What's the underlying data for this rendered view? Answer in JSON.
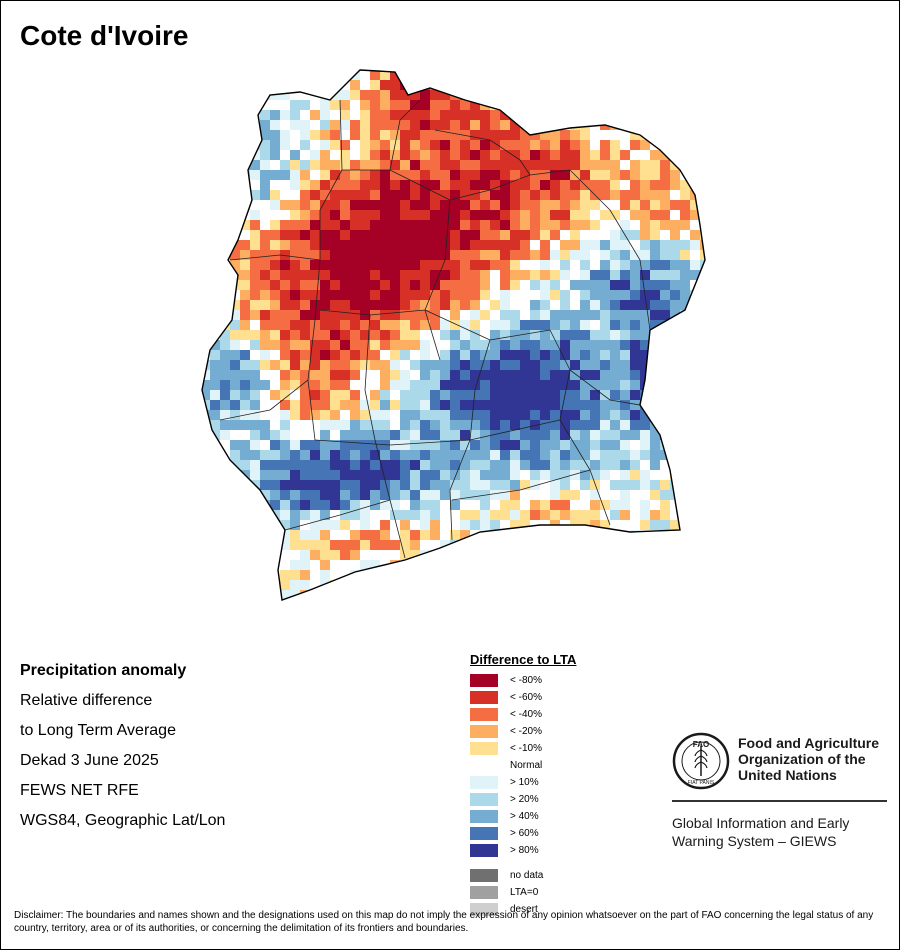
{
  "map_title": "Cote d'Ivoire",
  "info": {
    "heading": "Precipitation anomaly",
    "lines": [
      "Relative difference",
      "to Long Term Average",
      "Dekad 3 June 2025",
      "FEWS NET RFE",
      "WGS84, Geographic Lat/Lon"
    ]
  },
  "legend": {
    "title": "Difference to LTA",
    "items": [
      {
        "label": "< -80%",
        "color": "#a50026"
      },
      {
        "label": "< -60%",
        "color": "#d73027"
      },
      {
        "label": "< -40%",
        "color": "#f46d43"
      },
      {
        "label": "< -20%",
        "color": "#fdae61"
      },
      {
        "label": "< -10%",
        "color": "#fee090"
      },
      {
        "label": "Normal",
        "color": "#ffffff"
      },
      {
        "label": "> 10%",
        "color": "#e0f3f8"
      },
      {
        "label": "> 20%",
        "color": "#abd9e9"
      },
      {
        "label": "> 40%",
        "color": "#74add1"
      },
      {
        "label": "> 60%",
        "color": "#4575b4"
      },
      {
        "label": "> 80%",
        "color": "#313695"
      }
    ],
    "extra": [
      {
        "label": "no data",
        "color": "#707070"
      },
      {
        "label": "LTA=0",
        "color": "#a0a0a0"
      },
      {
        "label": "desert",
        "color": "#cfcfcf"
      }
    ]
  },
  "org": {
    "logo_text": "FAO",
    "logo_ring_text": "FIAT PANIS",
    "name_lines": [
      "Food and Agriculture",
      "Organization of the",
      "United Nations"
    ],
    "system_lines": [
      "Global Information and Early",
      "Warning System – GIEWS"
    ]
  },
  "disclaimer": "Disclaimer: The boundaries and names shown and the designations used on this map do not imply the expression of any opinion whatsoever on the part of FAO concerning the legal status of any country, territory, area or of its authorities, or concerning the delimitation of its frontiers and boundaries."
}
